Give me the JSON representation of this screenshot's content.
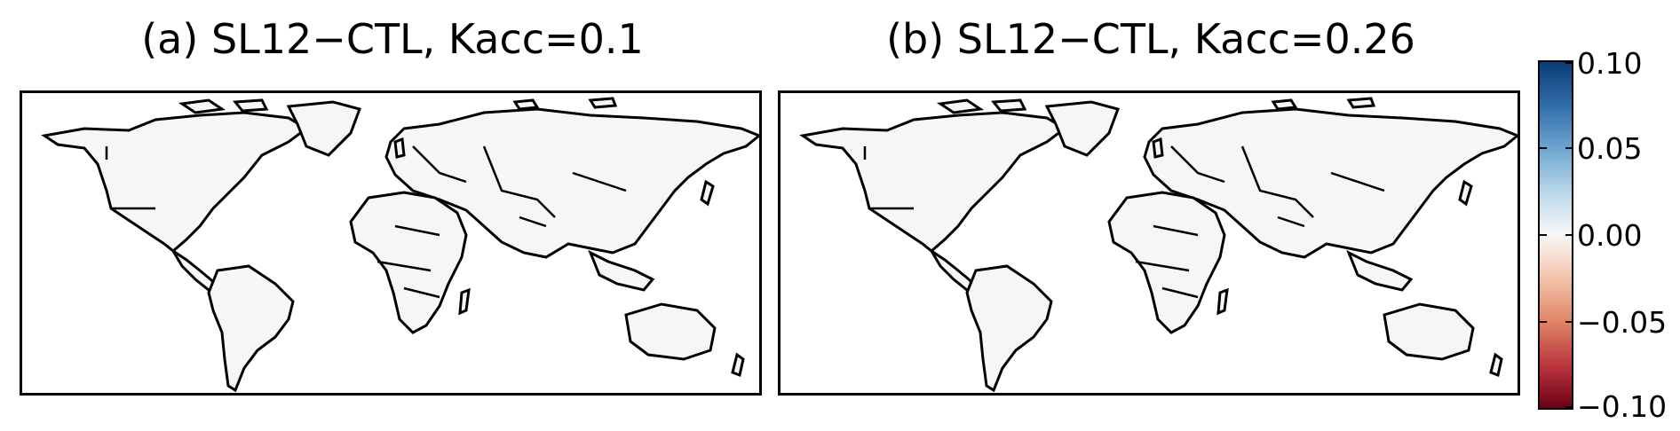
{
  "panels": [
    {
      "title": "(a) SL12−CTL, Kacc=0.1"
    },
    {
      "title": "(b) SL12−CTL, Kacc=0.26"
    }
  ],
  "colorbar": {
    "ticks": [
      "0.10",
      "0.05",
      "0.00",
      "−0.05",
      "−0.10"
    ],
    "range": [
      -0.1,
      0.1
    ],
    "colormap": "RdBu",
    "colors": {
      "max": "#0b3d75",
      "mid": "#f7f7f7",
      "min": "#6b0016"
    }
  },
  "map": {
    "projection": "equirectangular",
    "land_fill": "#f6f6f6",
    "ocean_fill": "#ffffff",
    "boundary_color": "#000000"
  }
}
